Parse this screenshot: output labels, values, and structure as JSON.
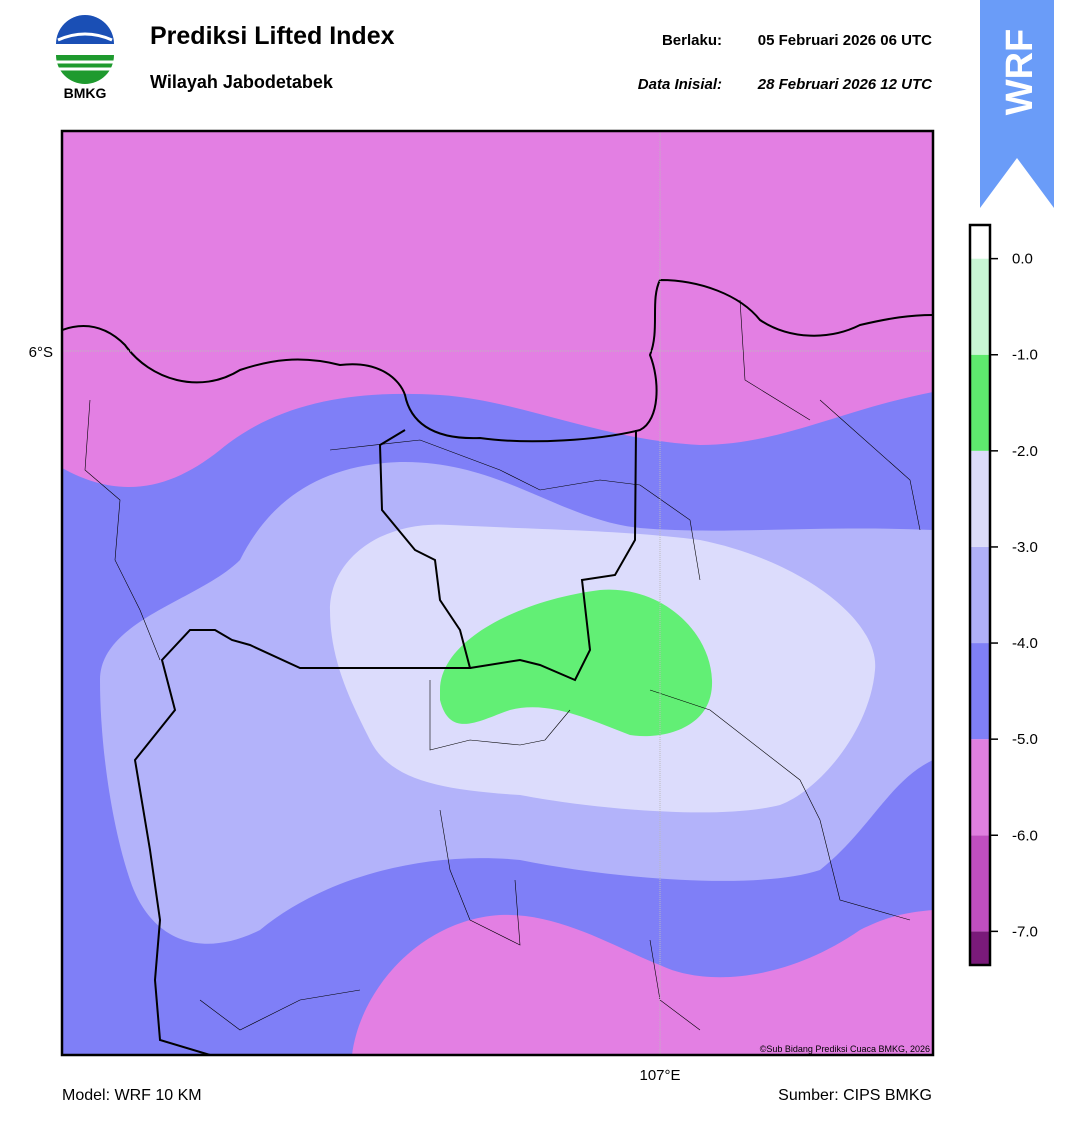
{
  "header": {
    "title": "Prediksi Lifted Index",
    "subtitle": "Wilayah Jabodetabek",
    "logo_text": "BMKG",
    "valid_label": "Berlaku:",
    "valid_time": "05 Februari 2026 06 UTC",
    "init_label": "Data Inisial:",
    "init_time": "28 Februari 2026 12 UTC",
    "badge": "WRF"
  },
  "map": {
    "lat_label": "6°S",
    "lon_label": "107°E",
    "credit": "©Sub Bidang Prediksi Cuaca BMKG, 2026"
  },
  "colorbar": {
    "lim": [
      -7.35,
      0.35
    ],
    "bins": [
      -7.35,
      -7,
      -6,
      -5,
      -4,
      -3,
      -2,
      -1,
      0,
      0.35
    ],
    "colors": [
      "#7a1a7a",
      "#c04ec0",
      "#e07fe0",
      "#7f7ff7",
      "#b0b0f8",
      "#dcdcfa",
      "#5eea6e",
      "#c8f7d5",
      "#ffffff"
    ],
    "ticks": [
      {
        "value": 0,
        "label": "0.0"
      },
      {
        "value": -1,
        "label": "-1.0"
      },
      {
        "value": -2,
        "label": "-2.0"
      },
      {
        "value": -3,
        "label": "-3.0"
      },
      {
        "value": -4,
        "label": "-4.0"
      },
      {
        "value": -5,
        "label": "-5.0"
      },
      {
        "value": -6,
        "label": "-6.0"
      },
      {
        "value": -7,
        "label": "-7.0"
      }
    ]
  },
  "footer": {
    "model": "Model: WRF 10 KM",
    "source": "Sumber: CIPS BMKG"
  }
}
